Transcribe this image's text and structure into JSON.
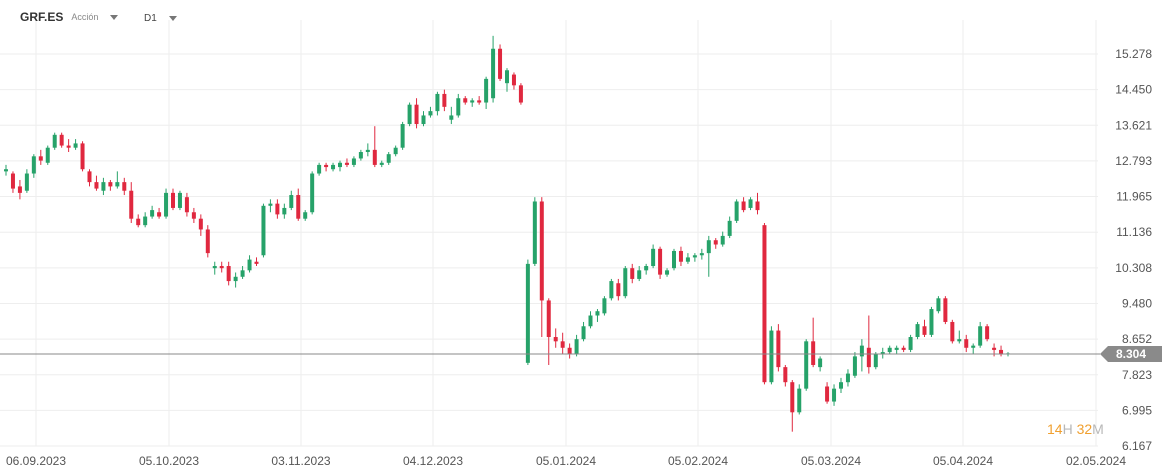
{
  "header": {
    "symbol": "GRF.ES",
    "asset_type": "Acción",
    "timeframe": "D1"
  },
  "timer": {
    "hours": "14",
    "hours_unit": "H",
    "minutes": "32",
    "minutes_unit": "M"
  },
  "colors": {
    "up": "#26a269",
    "down": "#e0283f",
    "grid": "#eeeeee",
    "price_line": "#888888",
    "price_tag": "#8a8a8a"
  },
  "chart_data": {
    "type": "candlestick",
    "ylim": [
      6.167,
      15.7
    ],
    "y_ticks": [
      "15.278",
      "14.450",
      "13.621",
      "12.793",
      "11.965",
      "11.136",
      "10.308",
      "9.480",
      "8.652",
      "7.823",
      "6.995",
      "6.167"
    ],
    "x_ticks": [
      "06.09.2023",
      "05.10.2023",
      "03.11.2023",
      "04.12.2023",
      "05.01.2024",
      "05.02.2024",
      "05.03.2024",
      "05.04.2024",
      "02.05.2024"
    ],
    "current_price": "8.304",
    "grid": true,
    "candles": [
      [
        12.55,
        12.7,
        12.45,
        12.6
      ],
      [
        12.5,
        12.55,
        12.05,
        12.15
      ],
      [
        12.2,
        12.35,
        11.9,
        12.05
      ],
      [
        12.1,
        12.6,
        12.05,
        12.5
      ],
      [
        12.5,
        12.95,
        12.4,
        12.9
      ],
      [
        12.9,
        13.05,
        12.7,
        12.8
      ],
      [
        12.75,
        13.15,
        12.7,
        13.1
      ],
      [
        13.1,
        13.45,
        13.05,
        13.4
      ],
      [
        13.4,
        13.45,
        13.1,
        13.15
      ],
      [
        13.15,
        13.3,
        13.0,
        13.1
      ],
      [
        13.1,
        13.3,
        13.05,
        13.2
      ],
      [
        13.2,
        13.25,
        12.55,
        12.6
      ],
      [
        12.55,
        12.6,
        12.2,
        12.3
      ],
      [
        12.3,
        12.45,
        12.1,
        12.15
      ],
      [
        12.1,
        12.4,
        12.0,
        12.3
      ],
      [
        12.3,
        12.35,
        12.1,
        12.2
      ],
      [
        12.2,
        12.55,
        12.15,
        12.3
      ],
      [
        12.3,
        12.4,
        12.0,
        12.1
      ],
      [
        12.1,
        12.3,
        11.35,
        11.45
      ],
      [
        11.45,
        11.55,
        11.25,
        11.3
      ],
      [
        11.3,
        11.6,
        11.25,
        11.5
      ],
      [
        11.5,
        11.75,
        11.45,
        11.65
      ],
      [
        11.6,
        11.7,
        11.45,
        11.5
      ],
      [
        11.5,
        12.15,
        11.45,
        12.05
      ],
      [
        12.05,
        12.15,
        11.65,
        11.7
      ],
      [
        11.7,
        12.1,
        11.65,
        12.05
      ],
      [
        11.95,
        12.05,
        11.5,
        11.6
      ],
      [
        11.6,
        11.7,
        11.35,
        11.45
      ],
      [
        11.45,
        11.55,
        11.05,
        11.2
      ],
      [
        11.2,
        11.3,
        10.55,
        10.65
      ],
      [
        10.3,
        10.45,
        10.15,
        10.35
      ],
      [
        10.35,
        10.45,
        10.2,
        10.3
      ],
      [
        10.35,
        10.45,
        9.9,
        10.0
      ],
      [
        10.0,
        10.2,
        9.85,
        10.1
      ],
      [
        10.1,
        10.35,
        10.05,
        10.25
      ],
      [
        10.25,
        10.6,
        10.2,
        10.5
      ],
      [
        10.45,
        10.55,
        10.35,
        10.4
      ],
      [
        10.6,
        11.8,
        10.55,
        11.75
      ],
      [
        11.75,
        11.9,
        11.6,
        11.8
      ],
      [
        11.8,
        11.9,
        11.45,
        11.55
      ],
      [
        11.55,
        11.8,
        11.45,
        11.7
      ],
      [
        11.7,
        12.1,
        11.65,
        12.0
      ],
      [
        12.0,
        12.15,
        11.4,
        11.45
      ],
      [
        11.45,
        11.65,
        11.4,
        11.6
      ],
      [
        11.6,
        12.55,
        11.55,
        12.5
      ],
      [
        12.5,
        12.75,
        12.45,
        12.7
      ],
      [
        12.7,
        12.75,
        12.55,
        12.65
      ],
      [
        12.6,
        12.75,
        12.55,
        12.7
      ],
      [
        12.65,
        12.8,
        12.55,
        12.75
      ],
      [
        12.75,
        12.85,
        12.65,
        12.7
      ],
      [
        12.7,
        12.9,
        12.65,
        12.85
      ],
      [
        12.85,
        13.05,
        12.8,
        13.0
      ],
      [
        13.0,
        13.2,
        12.9,
        13.05
      ],
      [
        13.05,
        13.6,
        12.65,
        12.7
      ],
      [
        12.7,
        12.8,
        12.65,
        12.75
      ],
      [
        12.75,
        13.0,
        12.7,
        12.95
      ],
      [
        12.95,
        13.15,
        12.9,
        13.1
      ],
      [
        13.1,
        13.7,
        13.05,
        13.65
      ],
      [
        13.65,
        14.15,
        13.6,
        14.1
      ],
      [
        14.1,
        14.25,
        13.55,
        13.65
      ],
      [
        13.65,
        13.95,
        13.6,
        13.85
      ],
      [
        13.85,
        14.05,
        13.8,
        13.95
      ],
      [
        13.95,
        14.4,
        13.85,
        14.35
      ],
      [
        14.35,
        14.45,
        13.95,
        14.05
      ],
      [
        13.75,
        14.05,
        13.65,
        13.85
      ],
      [
        13.85,
        14.35,
        13.8,
        14.25
      ],
      [
        14.25,
        14.3,
        14.1,
        14.15
      ],
      [
        14.15,
        14.25,
        14.05,
        14.2
      ],
      [
        14.2,
        14.3,
        14.1,
        14.15
      ],
      [
        14.15,
        14.75,
        14.0,
        14.7
      ],
      [
        14.25,
        15.7,
        14.15,
        15.4
      ],
      [
        15.4,
        15.5,
        14.65,
        14.7
      ],
      [
        14.6,
        14.95,
        14.4,
        14.9
      ],
      [
        14.8,
        14.85,
        14.45,
        14.55
      ],
      [
        14.55,
        14.6,
        14.1,
        14.15
      ],
      [
        8.1,
        10.5,
        8.05,
        10.4
      ],
      [
        10.4,
        11.95,
        10.35,
        11.85
      ],
      [
        11.85,
        11.95,
        8.7,
        9.55
      ],
      [
        9.55,
        9.6,
        8.05,
        8.7
      ],
      [
        8.7,
        8.9,
        8.45,
        8.6
      ],
      [
        8.6,
        8.8,
        8.3,
        8.45
      ],
      [
        8.45,
        8.55,
        8.2,
        8.3
      ],
      [
        8.3,
        8.75,
        8.25,
        8.65
      ],
      [
        8.65,
        9.05,
        8.6,
        8.95
      ],
      [
        8.95,
        9.3,
        8.9,
        9.2
      ],
      [
        9.2,
        9.35,
        9.05,
        9.3
      ],
      [
        9.25,
        9.65,
        9.2,
        9.6
      ],
      [
        9.6,
        10.05,
        9.55,
        10.0
      ],
      [
        9.95,
        10.05,
        9.55,
        9.65
      ],
      [
        9.65,
        10.35,
        9.6,
        10.3
      ],
      [
        10.3,
        10.4,
        9.95,
        10.05
      ],
      [
        10.05,
        10.35,
        10.0,
        10.25
      ],
      [
        10.25,
        10.4,
        10.15,
        10.35
      ],
      [
        10.35,
        10.85,
        10.3,
        10.75
      ],
      [
        10.75,
        10.8,
        10.05,
        10.15
      ],
      [
        10.15,
        10.3,
        10.1,
        10.25
      ],
      [
        10.3,
        10.75,
        10.25,
        10.7
      ],
      [
        10.7,
        10.8,
        10.35,
        10.45
      ],
      [
        10.45,
        10.65,
        10.4,
        10.55
      ],
      [
        10.55,
        10.65,
        10.45,
        10.6
      ],
      [
        10.6,
        10.75,
        10.5,
        10.65
      ],
      [
        10.65,
        11.05,
        10.1,
        10.95
      ],
      [
        10.95,
        11.0,
        10.75,
        10.85
      ],
      [
        10.85,
        11.15,
        10.8,
        11.05
      ],
      [
        11.05,
        11.5,
        11.0,
        11.4
      ],
      [
        11.4,
        11.9,
        11.35,
        11.85
      ],
      [
        11.85,
        11.95,
        11.6,
        11.65
      ],
      [
        11.7,
        11.95,
        11.65,
        11.9
      ],
      [
        11.85,
        12.05,
        11.55,
        11.65
      ],
      [
        11.3,
        11.35,
        7.6,
        7.65
      ],
      [
        7.65,
        8.95,
        7.6,
        8.85
      ],
      [
        8.85,
        9.0,
        7.9,
        8.0
      ],
      [
        8.0,
        8.05,
        7.55,
        7.65
      ],
      [
        7.65,
        7.7,
        6.5,
        6.95
      ],
      [
        6.95,
        7.6,
        6.9,
        7.5
      ],
      [
        7.5,
        8.65,
        7.45,
        8.6
      ],
      [
        8.6,
        9.15,
        8.0,
        8.05
      ],
      [
        8.0,
        8.25,
        7.9,
        8.2
      ],
      [
        7.55,
        7.65,
        7.15,
        7.2
      ],
      [
        7.2,
        7.6,
        7.1,
        7.5
      ],
      [
        7.5,
        7.75,
        7.4,
        7.65
      ],
      [
        7.65,
        7.95,
        7.55,
        7.85
      ],
      [
        7.8,
        8.35,
        7.75,
        8.25
      ],
      [
        8.25,
        8.65,
        7.9,
        8.5
      ],
      [
        8.45,
        9.2,
        7.85,
        8.0
      ],
      [
        8.0,
        8.35,
        7.95,
        8.3
      ],
      [
        8.3,
        8.45,
        8.2,
        8.35
      ],
      [
        8.35,
        8.5,
        8.3,
        8.45
      ],
      [
        8.4,
        8.5,
        8.3,
        8.45
      ],
      [
        8.45,
        8.5,
        8.35,
        8.4
      ],
      [
        8.4,
        8.75,
        8.35,
        8.7
      ],
      [
        8.7,
        9.05,
        8.65,
        9.0
      ],
      [
        8.95,
        9.1,
        8.7,
        8.75
      ],
      [
        8.75,
        9.4,
        8.7,
        9.35
      ],
      [
        9.3,
        9.65,
        9.25,
        9.6
      ],
      [
        9.6,
        9.65,
        9.0,
        9.05
      ],
      [
        9.05,
        9.1,
        8.55,
        8.6
      ],
      [
        8.6,
        8.85,
        8.55,
        8.65
      ],
      [
        8.65,
        8.75,
        8.35,
        8.45
      ],
      [
        8.45,
        8.55,
        8.3,
        8.5
      ],
      [
        8.5,
        9.05,
        8.45,
        8.95
      ],
      [
        8.95,
        9.0,
        8.6,
        8.65
      ],
      [
        8.45,
        8.55,
        8.25,
        8.4
      ],
      [
        8.4,
        8.5,
        8.25,
        8.3
      ],
      [
        8.3,
        8.35,
        8.25,
        8.32
      ]
    ]
  }
}
